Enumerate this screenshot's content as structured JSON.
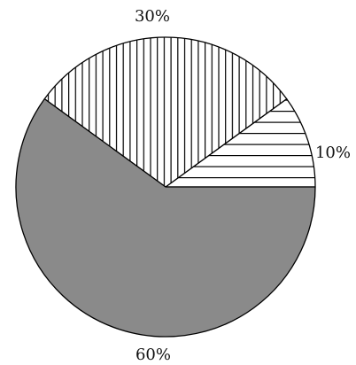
{
  "chart_data": {
    "type": "pie",
    "start_angle_deg": 0,
    "direction": "counterclockwise",
    "slices": [
      {
        "label": "10%",
        "value": 10,
        "fill": "horizontal-hatch",
        "color": "#000000"
      },
      {
        "label": "30%",
        "value": 30,
        "fill": "vertical-hatch",
        "color": "#000000"
      },
      {
        "label": "60%",
        "value": 60,
        "fill": "solid",
        "color": "#8a8a8a"
      }
    ],
    "outline_color": "#000000",
    "background": "#ffffff"
  }
}
